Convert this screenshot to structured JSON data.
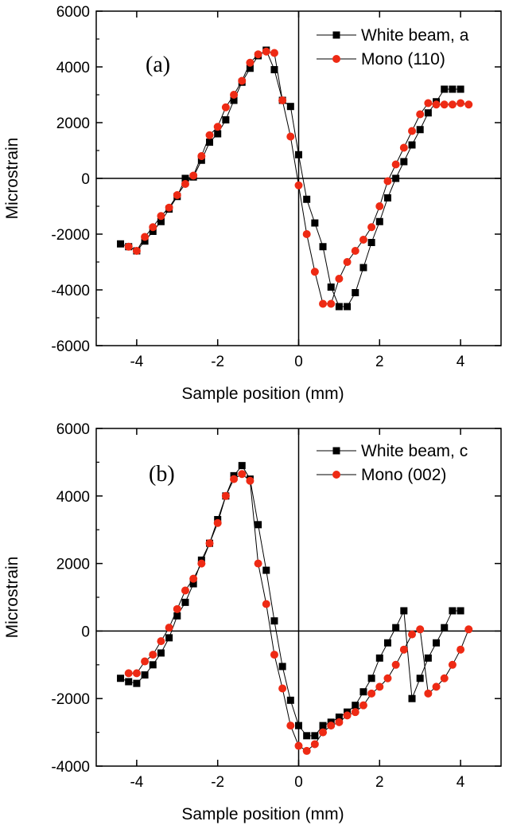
{
  "chart_data": [
    {
      "type": "line",
      "panel_label": "(a)",
      "xlabel": "Sample position (mm)",
      "ylabel": "Microstrain",
      "xlim": [
        -5,
        5
      ],
      "ylim": [
        -6000,
        6000
      ],
      "xticks": [
        -4,
        -2,
        0,
        2,
        4
      ],
      "xtick_labels": [
        "-4",
        "-2",
        "0",
        "2",
        "4"
      ],
      "yticks": [
        -6000,
        -4000,
        -2000,
        0,
        2000,
        4000,
        6000
      ],
      "ytick_labels": [
        "-6000",
        "-4000",
        "-2000",
        "0",
        "2000",
        "4000",
        "6000"
      ],
      "zero_lines": true,
      "grid": false,
      "legend_position": "top-right",
      "series": [
        {
          "name": "White beam, a",
          "color": "#000000",
          "marker": "square",
          "x": [
            -4.4,
            -4.2,
            -4.0,
            -3.8,
            -3.6,
            -3.4,
            -3.2,
            -3.0,
            -2.8,
            -2.6,
            -2.4,
            -2.2,
            -2.0,
            -1.8,
            -1.6,
            -1.4,
            -1.2,
            -1.0,
            -0.8,
            -0.6,
            -0.4,
            -0.2,
            0.0,
            0.2,
            0.4,
            0.6,
            0.8,
            1.0,
            1.2,
            1.4,
            1.6,
            1.8,
            2.0,
            2.2,
            2.4,
            2.6,
            2.8,
            3.0,
            3.2,
            3.4,
            3.6,
            3.8,
            4.0
          ],
          "y": [
            -2350,
            -2450,
            -2600,
            -2250,
            -1900,
            -1550,
            -1100,
            -650,
            0,
            50,
            650,
            1300,
            1600,
            2100,
            2800,
            3450,
            3950,
            4400,
            4600,
            3900,
            2800,
            2580,
            850,
            -750,
            -1600,
            -2450,
            -3900,
            -4600,
            -4600,
            -4100,
            -3200,
            -2300,
            -1550,
            -700,
            0,
            600,
            1200,
            1750,
            2350,
            2750,
            3200,
            3200,
            3200
          ]
        },
        {
          "name": "Mono (110)",
          "color": "#ee2a14",
          "marker": "circle",
          "x": [
            -4.2,
            -4.0,
            -3.8,
            -3.6,
            -3.4,
            -3.2,
            -3.0,
            -2.8,
            -2.6,
            -2.4,
            -2.2,
            -2.0,
            -1.8,
            -1.6,
            -1.4,
            -1.2,
            -1.0,
            -0.8,
            -0.6,
            -0.4,
            -0.2,
            0.0,
            0.2,
            0.4,
            0.6,
            0.8,
            1.0,
            1.2,
            1.4,
            1.6,
            1.8,
            2.0,
            2.2,
            2.4,
            2.6,
            2.8,
            3.0,
            3.2,
            3.4,
            3.6,
            3.8,
            4.0,
            4.2
          ],
          "y": [
            -2450,
            -2600,
            -2100,
            -1750,
            -1350,
            -1050,
            -600,
            -200,
            100,
            800,
            1550,
            1850,
            2550,
            3000,
            3500,
            4150,
            4450,
            4550,
            4500,
            2800,
            1500,
            -250,
            -2000,
            -3350,
            -4500,
            -4500,
            -3600,
            -3000,
            -2600,
            -2200,
            -1750,
            -1000,
            -100,
            500,
            1100,
            1700,
            2300,
            2700,
            2650,
            2650,
            2650,
            2700,
            2650
          ]
        }
      ]
    },
    {
      "type": "line",
      "panel_label": "(b)",
      "xlabel": "Sample position (mm)",
      "ylabel": "Microstrain",
      "xlim": [
        -5,
        5
      ],
      "ylim": [
        -4000,
        6000
      ],
      "xticks": [
        -4,
        -2,
        0,
        2,
        4
      ],
      "xtick_labels": [
        "-4",
        "-2",
        "0",
        "2",
        "4"
      ],
      "yticks": [
        -4000,
        -2000,
        0,
        2000,
        4000,
        6000
      ],
      "ytick_labels": [
        "-4000",
        "-2000",
        "0",
        "2000",
        "4000",
        "6000"
      ],
      "zero_lines": true,
      "grid": false,
      "legend_position": "top-right",
      "series": [
        {
          "name": "White beam, c",
          "color": "#000000",
          "marker": "square",
          "x": [
            -4.4,
            -4.2,
            -4.0,
            -3.8,
            -3.6,
            -3.4,
            -3.2,
            -3.0,
            -2.8,
            -2.6,
            -2.4,
            -2.2,
            -2.0,
            -1.8,
            -1.6,
            -1.4,
            -1.2,
            -1.0,
            -0.8,
            -0.6,
            -0.4,
            -0.2,
            0.0,
            0.2,
            0.4,
            0.6,
            0.8,
            1.0,
            1.2,
            1.4,
            1.6,
            1.8,
            2.0,
            2.2,
            2.4,
            2.6,
            2.8,
            3.0,
            3.2,
            3.4,
            3.6,
            3.8,
            4.0
          ],
          "y": [
            -1400,
            -1500,
            -1550,
            -1300,
            -1000,
            -650,
            -200,
            450,
            850,
            1400,
            2100,
            2600,
            3300,
            4000,
            4600,
            4900,
            4500,
            3150,
            1800,
            300,
            -1050,
            -2050,
            -2800,
            -3100,
            -3100,
            -2800,
            -2700,
            -2550,
            -2400,
            -2200,
            -1800,
            -1400,
            -800,
            -350,
            100,
            600,
            -2000,
            -1400,
            -800,
            -350,
            100,
            600,
            600
          ]
        },
        {
          "name": "Mono (002)",
          "color": "#ee2a14",
          "marker": "circle",
          "x": [
            -4.2,
            -4.0,
            -3.8,
            -3.6,
            -3.4,
            -3.2,
            -3.0,
            -2.8,
            -2.6,
            -2.4,
            -2.2,
            -2.0,
            -1.8,
            -1.6,
            -1.4,
            -1.2,
            -1.0,
            -0.8,
            -0.6,
            -0.4,
            -0.2,
            0.0,
            0.2,
            0.4,
            0.6,
            0.8,
            1.0,
            1.2,
            1.4,
            1.6,
            1.8,
            2.0,
            2.2,
            2.4,
            2.6,
            2.8,
            3.0,
            3.2,
            3.4,
            3.6,
            3.8,
            4.0,
            4.2
          ],
          "y": [
            -1250,
            -1250,
            -900,
            -700,
            -300,
            100,
            650,
            1200,
            1550,
            2000,
            2600,
            3200,
            4000,
            4500,
            4650,
            4450,
            2000,
            800,
            -700,
            -1700,
            -2800,
            -3400,
            -3550,
            -3350,
            -3000,
            -2800,
            -2700,
            -2500,
            -2400,
            -2200,
            -1850,
            -1650,
            -1400,
            -1000,
            -550,
            -100,
            50,
            -1850,
            -1650,
            -1400,
            -1000,
            -550,
            50
          ]
        }
      ]
    }
  ]
}
